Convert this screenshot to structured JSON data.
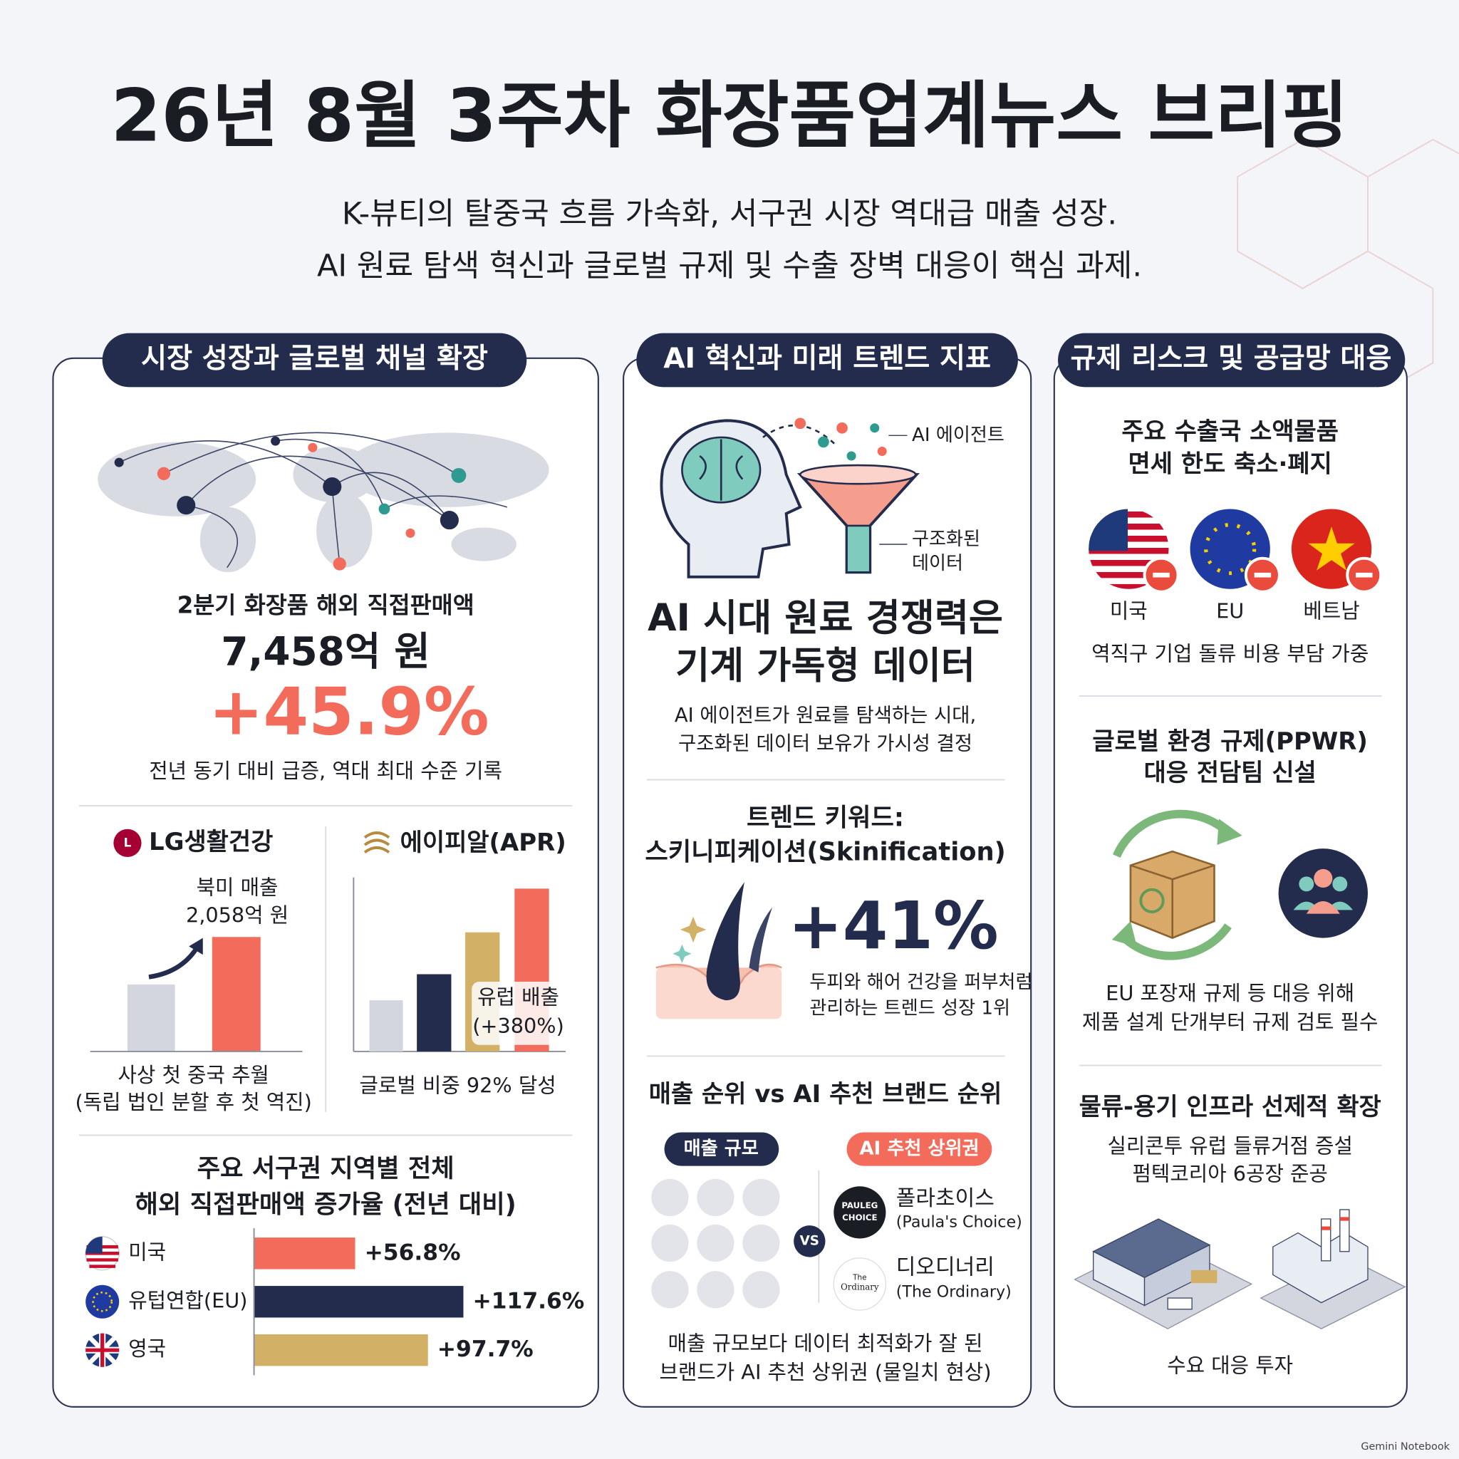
{
  "header": {
    "title": "26년 8월 3주차 화장품업계뉴스 브리핑",
    "subtitle": [
      "K-뷰티의 탈중국 흐름 가속화, 서구권 시장 역대급 매출 성장.",
      "AI 원료 탐색 혁신과 글로벌 규제 및 수출 장벽 대응이 핵심 과제."
    ]
  },
  "market": {
    "heading": "시장 성장과 글로벌 채널 확장",
    "metric_label": "2분기 화장품 해외 직접판매액",
    "metric_value": "7,458억 원",
    "growth": "+45.9%",
    "note": "전년 동기 대비 급증, 역대 최대 수준 기록",
    "lg": {
      "brand": "LG생활건강",
      "callout": [
        "북미 매출",
        "2,058억 원"
      ],
      "caption": [
        "사상 첫 중국 추월",
        "(독립 법인 분할 후 첫 역진)"
      ]
    },
    "apr": {
      "brand": "에이피알(APR)",
      "callout": [
        "유럽 배출",
        "(+380%)"
      ],
      "caption": "글로벌 비중 92% 달성"
    },
    "regions": {
      "title": [
        "주요 서구권 지역별 전체",
        "해외 직접판매액 증가율 (전년 대비)"
      ],
      "categories": [
        "미국",
        "유텁연합(EU)",
        "영국"
      ],
      "values": [
        56.8,
        117.6,
        97.7
      ],
      "value_labels": [
        "+56.8%",
        "+117.6%",
        "+97.7%"
      ],
      "colors": [
        "#f26b5b",
        "#232c4c",
        "#d2b065"
      ]
    }
  },
  "ai": {
    "heading": "AI 혁신과 미래 트렌드 지표",
    "diagram": {
      "agent": "AI 에이전트",
      "data": [
        "구조화된",
        "데이터"
      ]
    },
    "headline": [
      "AI 시대 원료 경쟁력은",
      "기계 가독형 데이터"
    ],
    "description": [
      "AI 에이전트가 원료를 탐색하는 시대,",
      "구조화된 데이터 보유가 가시성 결정"
    ],
    "trend_title": [
      "트렌드 키워드:",
      "스키니피케이션(Skinification)"
    ],
    "trend_value": "+41%",
    "trend_note": [
      "두피와 해어 건강을 퍼부처럼",
      "관리하는 트렌드 성장 1위"
    ],
    "ranking": {
      "title": "매출 순위 vs AI 추천 브랜드 순위",
      "left_tag": "매출 규모",
      "right_tag": "AI 추천 상위권",
      "vs": "VS",
      "brands": [
        {
          "logo": [
            "PAULEG",
            "CHOICE"
          ],
          "name": "폴라초이스",
          "english": "(Paula's Choice)"
        },
        {
          "logo": [
            "The",
            "Ordinary"
          ],
          "name": "디오디너리",
          "english": "(The Ordinary)"
        }
      ],
      "footnote": [
        "매출 규모보다 데이터 최적화가 잘 된",
        "브랜드가 AI 추천 상위권 (물일치 현상)"
      ]
    }
  },
  "regulation": {
    "heading": "규제 리스크 및 공급망 대응",
    "duty": {
      "title": [
        "주요 수출국 소액물품",
        "면세 한도 축소·폐지"
      ],
      "countries": [
        "미국",
        "EU",
        "베트남"
      ],
      "note": "역직구 기업 돌류 비용 부담 가중"
    },
    "ppwr": {
      "title": [
        "글로벌 환경 규제(PPWR)",
        "대응 전담팀 신설"
      ],
      "note": [
        "EU 포장재 규제 등 대응 위해",
        "제품 설계 단개부터 규제 검토 필수"
      ]
    },
    "logistics": {
      "title": "물류-용기 인프라 선제적 확장",
      "lines": [
        "실리콘투 유럽 들류거점 증설",
        "펌텍코리아 6공장 준공"
      ],
      "caption": "수요 대응 투자"
    }
  },
  "footer": "Gemini Notebook"
}
